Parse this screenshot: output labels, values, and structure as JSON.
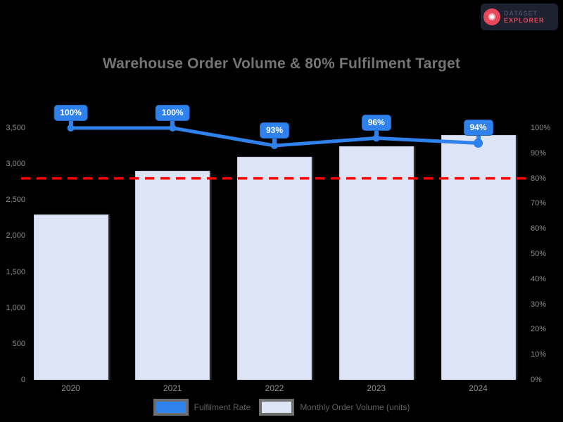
{
  "page": {
    "background": "#000000"
  },
  "logo": {
    "icon": "compass-rose-icon",
    "line1": "DATASET",
    "line2": "EXPLORER",
    "icon_color": "#e8485c"
  },
  "chart_data": {
    "type": "combo-bar-line",
    "title": "Warehouse Order Volume & 80% Fulfilment Target",
    "categories": [
      "2020",
      "2021",
      "2022",
      "2023",
      "2024"
    ],
    "series": [
      {
        "name": "Monthly Order Volume (units)",
        "type": "bar",
        "axis": "left",
        "values": [
          2300,
          2900,
          3100,
          3250,
          3400
        ],
        "color": "#dde4f6"
      },
      {
        "name": "Fulfilment Rate",
        "type": "line",
        "axis": "right",
        "values": [
          100,
          100,
          93,
          96,
          94
        ],
        "unit": "%",
        "point_labels": [
          "100%",
          "100%",
          "93%",
          "96%",
          "94%"
        ],
        "color": "#2f82ec"
      }
    ],
    "target_line": {
      "value": 80,
      "axis": "right",
      "style": "dashed",
      "color": "#ff0000"
    },
    "axes": {
      "left": {
        "min": 0,
        "max": 3500,
        "step": 500
      },
      "right": {
        "min": 0,
        "max": 100,
        "step": 10,
        "suffix": "%"
      }
    },
    "grid": false,
    "legend_position": "bottom",
    "legend": [
      {
        "label": "Fulfilment Rate",
        "color": "#2f82ec"
      },
      {
        "label": "Monthly Order Volume (units)",
        "color": "#dde4f6"
      }
    ],
    "colors": {
      "bar_fill": "#dde4f6",
      "bar_border": "#c3cadd",
      "line": "#2f82ec",
      "target": "#ff0000",
      "title_text": "#757575",
      "axis_text": "#8c8c8c"
    }
  }
}
